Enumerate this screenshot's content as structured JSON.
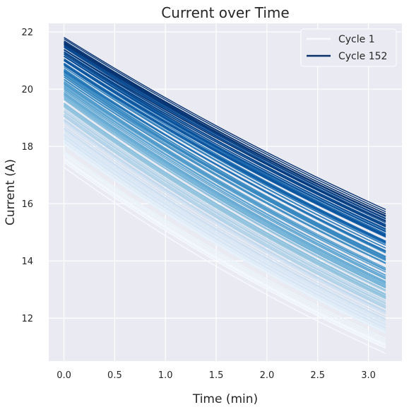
{
  "chart_data": {
    "type": "line",
    "title": "Current over Time",
    "xlabel": "Time (min)",
    "ylabel": "Current (A)",
    "xlim": [
      -0.15,
      3.33
    ],
    "ylim": [
      10.5,
      22.3
    ],
    "x_ticks": [
      0.0,
      0.5,
      1.0,
      1.5,
      2.0,
      2.5,
      3.0
    ],
    "y_ticks": [
      12,
      14,
      16,
      18,
      20,
      22
    ],
    "x_tick_labels": [
      "0.0",
      "0.5",
      "1.0",
      "1.5",
      "2.0",
      "2.5",
      "3.0"
    ],
    "y_tick_labels": [
      "12",
      "14",
      "16",
      "18",
      "20",
      "22"
    ],
    "grid": true,
    "legend_position": "top-right",
    "colormap": "Blues",
    "background_color": "#eaeaf2",
    "grid_color": "#ffffff",
    "series_count": 152,
    "x": [
      0.0,
      3.17
    ],
    "series": [
      {
        "name": "Cycle 1",
        "label_in_legend": true,
        "color": "#f7fbff",
        "values": [
          17.45,
          10.95
        ]
      },
      {
        "cycle": 20,
        "values": [
          18.3,
          11.7
        ]
      },
      {
        "cycle": 40,
        "values": [
          19.0,
          12.3
        ]
      },
      {
        "cycle": 60,
        "values": [
          19.6,
          12.9
        ]
      },
      {
        "cycle": 80,
        "values": [
          20.1,
          13.5
        ]
      },
      {
        "cycle": 100,
        "values": [
          20.6,
          14.2
        ]
      },
      {
        "cycle": 120,
        "values": [
          21.0,
          14.8
        ]
      },
      {
        "cycle": 140,
        "values": [
          21.4,
          15.3
        ]
      },
      {
        "name": "Cycle 152",
        "label_in_legend": true,
        "color": "#08306b",
        "values": [
          21.65,
          15.65
        ]
      }
    ]
  }
}
